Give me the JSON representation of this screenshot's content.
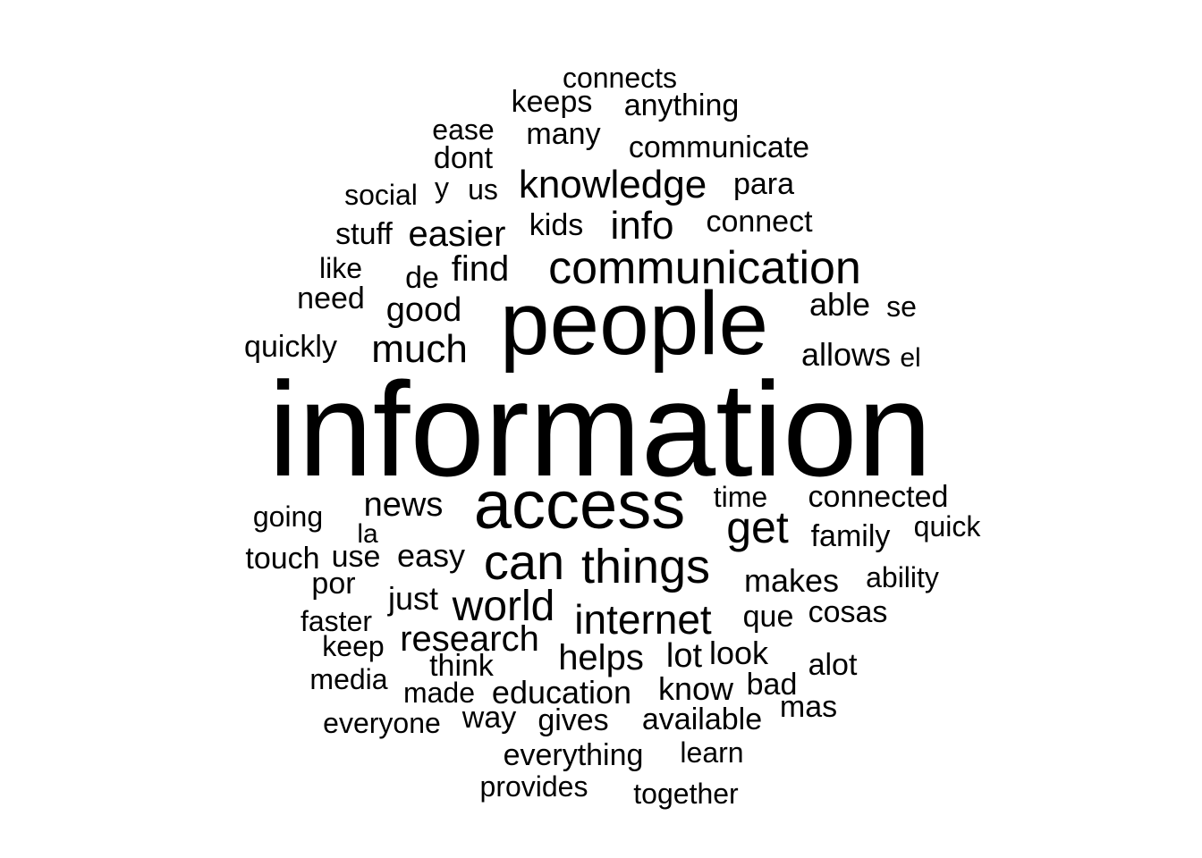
{
  "background_color": "#ffffff",
  "text_color": "#000000",
  "words": [
    "information",
    "people",
    "access",
    "communication",
    "things",
    "can",
    "world",
    "internet",
    "get",
    "knowledge",
    "much",
    "info",
    "research",
    "easier",
    "news",
    "education",
    "helps",
    "good",
    "find",
    "lot",
    "know",
    "easy",
    "just",
    "connected",
    "connect",
    "communicate",
    "made",
    "think",
    "connects",
    "keeps",
    "anything",
    "ease",
    "many",
    "dont",
    "social",
    "y",
    "us",
    "para",
    "stuff",
    "kids",
    "like",
    "de",
    "need",
    "able",
    "se",
    "quickly",
    "allows",
    "el",
    "time",
    "going",
    "la",
    "quick",
    "family",
    "touch",
    "use",
    "por",
    "makes",
    "ability",
    "faster",
    "que",
    "cosas",
    "keep",
    "look",
    "media",
    "alot",
    "bad",
    "everyone",
    "way",
    "gives",
    "available",
    "mas",
    "everything",
    "learn",
    "provides",
    "together"
  ]
}
